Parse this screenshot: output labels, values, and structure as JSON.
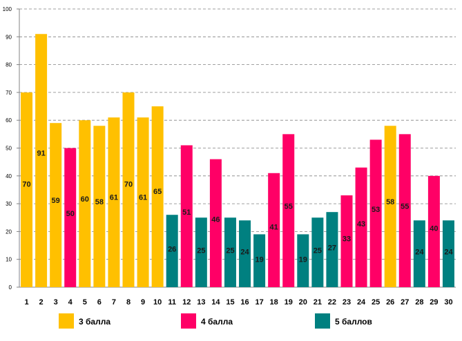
{
  "chart_data": {
    "type": "bar",
    "categories": [
      "1",
      "2",
      "3",
      "4",
      "5",
      "6",
      "7",
      "8",
      "9",
      "10",
      "11",
      "12",
      "13",
      "14",
      "15",
      "16",
      "17",
      "18",
      "19",
      "20",
      "21",
      "22",
      "23",
      "24",
      "25",
      "26",
      "27",
      "28",
      "29",
      "30"
    ],
    "values": [
      70,
      91,
      59,
      50,
      60,
      58,
      61,
      70,
      61,
      65,
      26,
      51,
      25,
      46,
      25,
      24,
      19,
      41,
      55,
      19,
      25,
      27,
      33,
      43,
      53,
      58,
      55,
      24,
      40,
      24
    ],
    "groups": [
      "g3",
      "g3",
      "g3",
      "g4",
      "g3",
      "g3",
      "g3",
      "g3",
      "g3",
      "g3",
      "g5",
      "g4",
      "g5",
      "g4",
      "g5",
      "g5",
      "g5",
      "g4",
      "g4",
      "g5",
      "g5",
      "g5",
      "g4",
      "g4",
      "g4",
      "g3",
      "g4",
      "g5",
      "g4",
      "g5"
    ],
    "legend": [
      {
        "key": "g3",
        "label": "3 балла",
        "color": "#ffc000"
      },
      {
        "key": "g4",
        "label": "4 балла",
        "color": "#ff0066"
      },
      {
        "key": "g5",
        "label": "5 баллов",
        "color": "#008080"
      }
    ],
    "y_ticks": [
      "0",
      "10",
      "20",
      "30",
      "40",
      "50",
      "60",
      "70",
      "80",
      "90",
      "100"
    ],
    "ylim": [
      0,
      100
    ],
    "grid": true,
    "title": "",
    "xlabel": "",
    "ylabel": ""
  }
}
